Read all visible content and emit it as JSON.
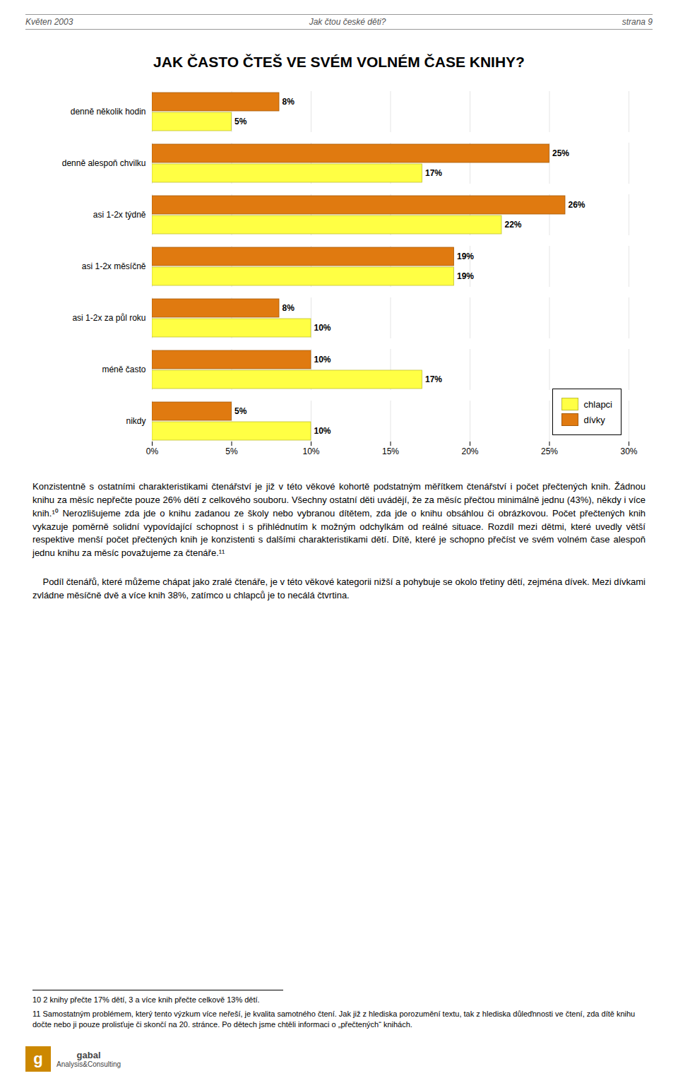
{
  "chart_data": {
    "type": "bar",
    "orientation": "horizontal",
    "title": "JAK ČASTO ČTEŠ VE SVÉM VOLNÉM ČASE KNIHY?",
    "categories": [
      "denně několik hodin",
      "denně alespoň chvilku",
      "asi 1-2x týdně",
      "asi 1-2x měsíčně",
      "asi 1-2x za půl roku",
      "méně často",
      "nikdy"
    ],
    "series": [
      {
        "name": "chlapci",
        "color": "#FFFF44",
        "values": [
          5,
          17,
          22,
          19,
          10,
          17,
          10
        ],
        "value_labels": [
          "5%",
          "17%",
          "22%",
          "19%",
          "10%",
          "17%",
          "10%"
        ]
      },
      {
        "name": "dívky",
        "color": "#E07A10",
        "values": [
          8,
          25,
          26,
          19,
          8,
          10,
          5
        ],
        "value_labels": [
          "8%",
          "25%",
          "26%",
          "19%",
          "8%",
          "10%",
          "5%"
        ]
      }
    ],
    "xlim": [
      0,
      30
    ],
    "xticks": [
      {
        "value": 0,
        "label": "0%"
      },
      {
        "value": 5,
        "label": "5%"
      },
      {
        "value": 10,
        "label": "10%"
      },
      {
        "value": 15,
        "label": "15%"
      },
      {
        "value": 20,
        "label": "20%"
      },
      {
        "value": 25,
        "label": "25%"
      },
      {
        "value": 30,
        "label": "30%"
      }
    ],
    "grid": true,
    "legend": "lower right",
    "data_labels": true,
    "annotations": [
      "Květen 2003",
      "Jak čtou české děti?",
      "strana 9",
      "Konzistentně s ostatními charakteristikami čtenářství je již v této věkové kohortě podstatným měřítkem čtenářství i počet přečtených knih. Žádnou knihu za měsíc nepřečte pouze 26% dětí z celkového souboru. Všechny ostatní děti uvádějí, že za měsíc přečtou minimálně jednu (43%), někdy i více knih.¹⁰ Nerozlišujeme zda jde o knihu zadanou ze školy nebo vybranou dítětem, zda jde o knihu obsáhlou či obrázkovou. Počet přečtených knih vykazuje poměrně solidní vypovídající schopnost i s přihlédnutím k možným odchylkám od reálné situace. Rozdíl mezi dětmi, které uvedly větší respektive menší počet přečtených knih je konzistenti s dalšími charakteristikami dětí. Dítě, které je schopno přečíst ve svém volném čase alespoň jednu knihu za měsíc považujeme za čtenáře.¹¹",
      "\tPodíl čtenářů, které můžeme chápat jako zralé čtenáře, je v této věkové kategorii nižší a pohybuje se okolo třetiny dětí, zejména dívek. Mezi dívkami zvládne měsíčně dvě a více knih 38%, zatímco u chlapců je to necálá čtvrtina.",
      "10 2 knihy přečte 17% dětí, 3 a více knih přečte celkově 13% dětí.",
      "11 Samostatným problémem, který tento výzkum více neřeší, je kvalita samotného čtení. Jak již z hlediska porozumění textu, tak z hlediska důledŉnosti ve čtení, zda dítě knihu dočte nebo ji pouze prolisťuje či skončí na 20. stránce. Po dětech jsme chtěli informaci o „přečtených“ knihách.",
      "gabal",
      "Analysis&Consulting",
      "g"
    ]
  }
}
